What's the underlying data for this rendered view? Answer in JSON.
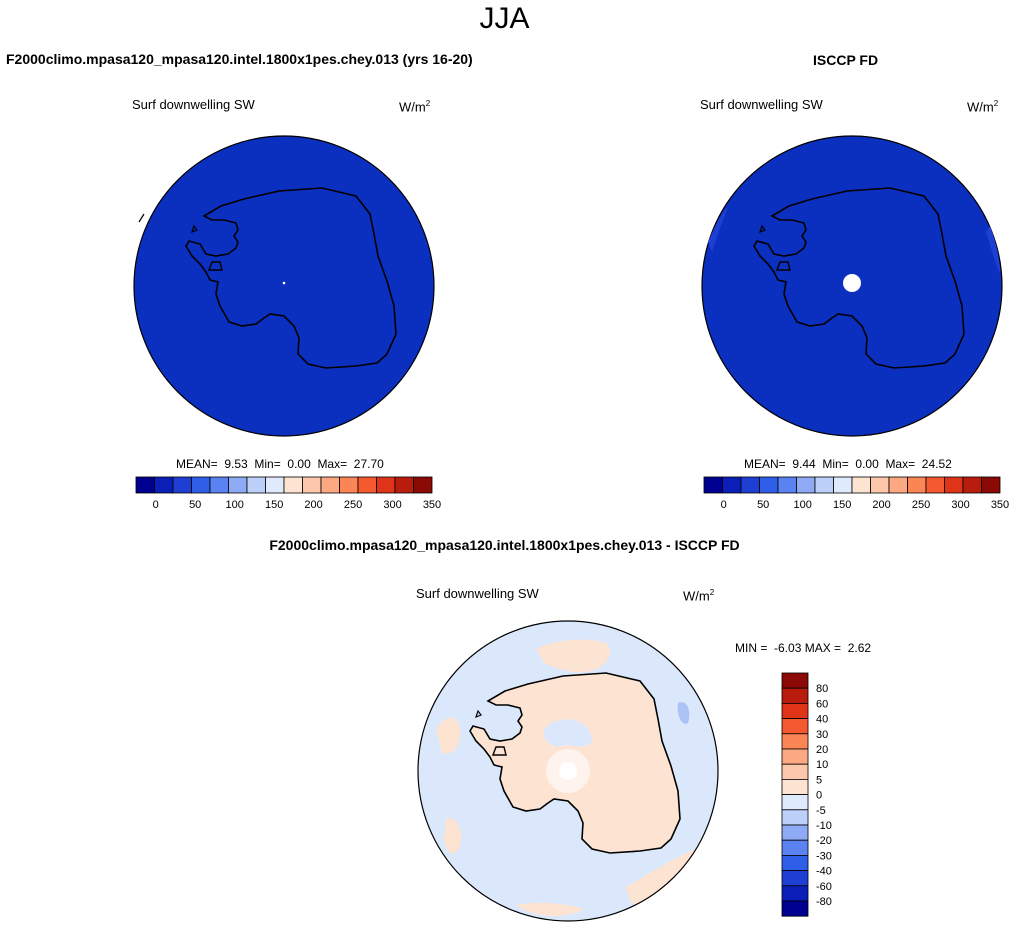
{
  "figure": {
    "season": "JJA",
    "model_title": "F2000climo.mpasa120_mpasa120.intel.1800x1pes.chey.013 (yrs 16-20)",
    "obs_title": "ISCCP FD",
    "diff_title": "F2000climo.mpasa120_mpasa120.intel.1800x1pes.chey.013 - ISCCP FD"
  },
  "chart_data": [
    {
      "type": "heatmap",
      "panel": "model",
      "title": "F2000climo.mpasa120_mpasa120.intel.1800x1pes.chey.013 (yrs 16-20)",
      "variable": "Surf downwelling SW",
      "units": "W/m",
      "units_exp": "2",
      "projection": "south polar stereographic",
      "stats": {
        "mean_label": "MEAN=",
        "mean": "9.53",
        "min_label": "Min=",
        "min": "0.00",
        "max_label": "Max=",
        "max": "27.70"
      },
      "colorbar": {
        "orientation": "horizontal",
        "tick_labels": [
          "0",
          "50",
          "100",
          "150",
          "200",
          "250",
          "300",
          "350"
        ],
        "levels": [
          -25,
          0,
          25,
          50,
          75,
          100,
          125,
          150,
          175,
          200,
          225,
          250,
          275,
          300,
          325,
          350
        ],
        "colors": [
          "#000090",
          "#0a1fb8",
          "#1f3fd4",
          "#2f5fe8",
          "#5a82f0",
          "#8eaaf4",
          "#bdd0fa",
          "#dfeafd",
          "#fde3d2",
          "#fcc7aa",
          "#fca882",
          "#fc8555",
          "#f4592f",
          "#e03419",
          "#b81c0c",
          "#8c0a06"
        ]
      },
      "field_color": "#0b2fbf"
    },
    {
      "type": "heatmap",
      "panel": "obs",
      "title": "ISCCP FD",
      "variable": "Surf downwelling SW",
      "units": "W/m",
      "units_exp": "2",
      "projection": "south polar stereographic",
      "stats": {
        "mean_label": "MEAN=",
        "mean": "9.44",
        "min_label": "Min=",
        "min": "0.00",
        "max_label": "Max=",
        "max": "24.52"
      },
      "colorbar": {
        "orientation": "horizontal",
        "tick_labels": [
          "0",
          "50",
          "100",
          "150",
          "200",
          "250",
          "300",
          "350"
        ],
        "levels": [
          -25,
          0,
          25,
          50,
          75,
          100,
          125,
          150,
          175,
          200,
          225,
          250,
          275,
          300,
          325,
          350
        ],
        "colors": [
          "#000090",
          "#0a1fb8",
          "#1f3fd4",
          "#2f5fe8",
          "#5a82f0",
          "#8eaaf4",
          "#bdd0fa",
          "#dfeafd",
          "#fde3d2",
          "#fcc7aa",
          "#fca882",
          "#fc8555",
          "#f4592f",
          "#e03419",
          "#b81c0c",
          "#8c0a06"
        ]
      },
      "field_color": "#0b2fbf"
    },
    {
      "type": "heatmap",
      "panel": "difference",
      "title": "F2000climo.mpasa120_mpasa120.intel.1800x1pes.chey.013 - ISCCP FD",
      "variable": "Surf downwelling SW",
      "units": "W/m",
      "units_exp": "2",
      "projection": "south polar stereographic",
      "stats": {
        "min_label": "MIN =",
        "min": "-6.03",
        "max_label": "MAX =",
        "max": "2.62"
      },
      "colorbar": {
        "orientation": "vertical",
        "tick_labels": [
          "80",
          "60",
          "40",
          "30",
          "20",
          "10",
          "5",
          "0",
          "-5",
          "-10",
          "-20",
          "-30",
          "-40",
          "-60",
          "-80"
        ],
        "colors_top_to_bottom": [
          "#8c0a06",
          "#b81c0c",
          "#e03419",
          "#f4592f",
          "#fc8555",
          "#fca882",
          "#fcc7aa",
          "#fde3d2",
          "#dfeafd",
          "#bdd0fa",
          "#8eaaf4",
          "#5a82f0",
          "#2f5fe8",
          "#1f3fd4",
          "#0a1fb8",
          "#000090"
        ]
      },
      "field_color": "#dbe8fb",
      "positive_color": "#fde3d2",
      "negative_color": "#8eaaf4"
    }
  ]
}
